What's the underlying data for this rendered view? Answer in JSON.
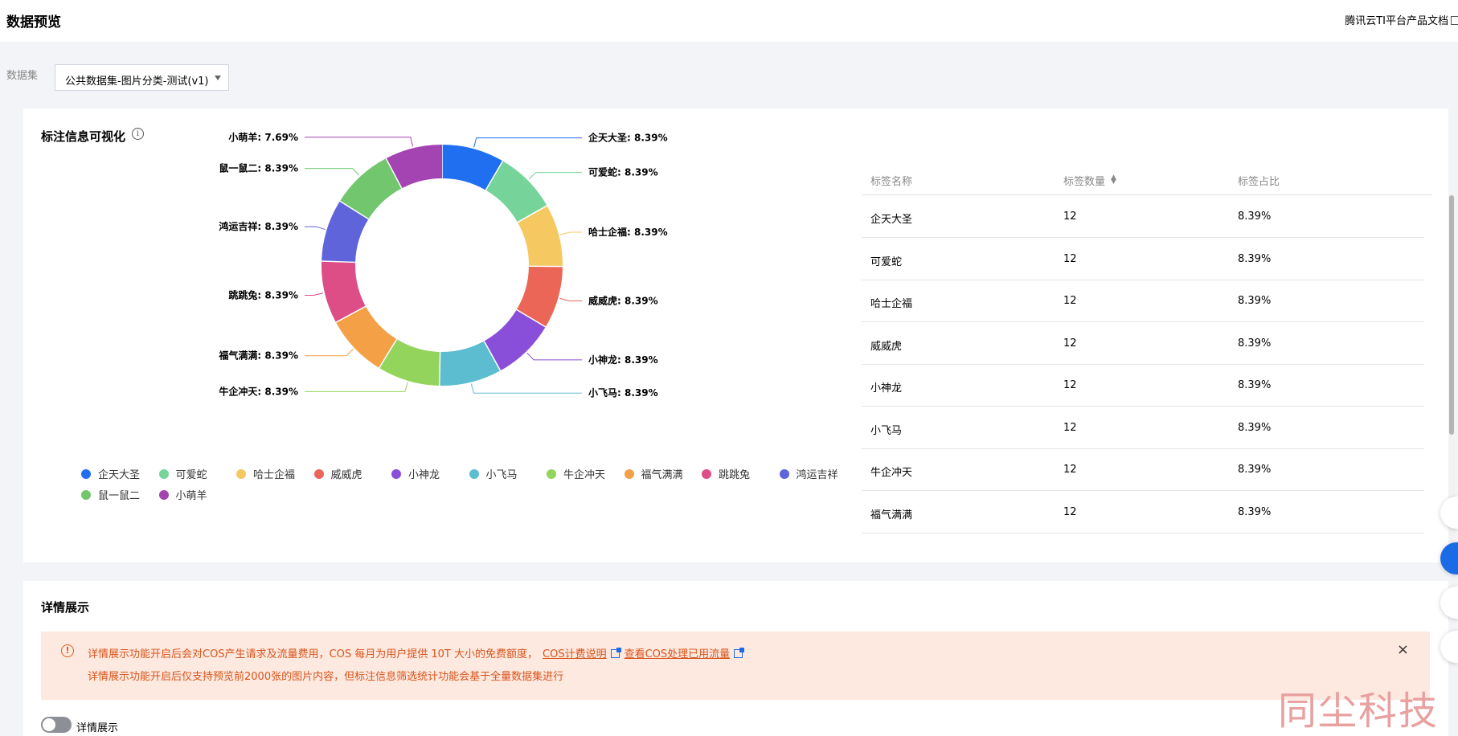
{
  "header": {
    "title": "数据预览",
    "doc_link": "腾讯云TI平台产品文档"
  },
  "dataset": {
    "label": "数据集",
    "selected": "公共数据集-图片分类-测试(v1)"
  },
  "viz_card": {
    "title": "标注信息可视化",
    "info_icon": "info-icon"
  },
  "chart_data": {
    "type": "pie",
    "donut": true,
    "slices": [
      {
        "name": "企天大圣",
        "value": 8.39,
        "label": "企天大圣: 8.39%",
        "color": "#1f6ff0"
      },
      {
        "name": "可爱蛇",
        "value": 8.39,
        "label": "可爱蛇: 8.39%",
        "color": "#76d49a"
      },
      {
        "name": "哈士企福",
        "value": 8.39,
        "label": "哈士企福: 8.39%",
        "color": "#f5c862"
      },
      {
        "name": "威威虎",
        "value": 8.39,
        "label": "威威虎: 8.39%",
        "color": "#eb6657"
      },
      {
        "name": "小神龙",
        "value": 8.39,
        "label": "小神龙: 8.39%",
        "color": "#8a4fd8"
      },
      {
        "name": "小飞马",
        "value": 8.39,
        "label": "小飞马: 8.39%",
        "color": "#5cbdd1"
      },
      {
        "name": "牛企冲天",
        "value": 8.39,
        "label": "牛企冲天: 8.39%",
        "color": "#93d55c"
      },
      {
        "name": "福气满满",
        "value": 8.39,
        "label": "福气满满: 8.39%",
        "color": "#f3a047"
      },
      {
        "name": "跳跳兔",
        "value": 8.39,
        "label": "跳跳兔: 8.39%",
        "color": "#dd4d86"
      },
      {
        "name": "鸿运吉祥",
        "value": 8.39,
        "label": "鸿运吉祥: 8.39%",
        "color": "#6064db"
      },
      {
        "name": "鼠一鼠二",
        "value": 8.39,
        "label": "鼠一鼠二: 8.39%",
        "color": "#71c66e"
      },
      {
        "name": "小萌羊",
        "value": 7.69,
        "label": "小萌羊: 7.69%",
        "color": "#a443b2"
      }
    ],
    "legend_position": "bottom"
  },
  "table": {
    "headers": [
      "标签名称",
      "标签数量",
      "标签占比"
    ],
    "sort_icon": "sort-icon",
    "rows": [
      {
        "name": "企天大圣",
        "count": "12",
        "ratio": "8.39%"
      },
      {
        "name": "可爱蛇",
        "count": "12",
        "ratio": "8.39%"
      },
      {
        "name": "哈士企福",
        "count": "12",
        "ratio": "8.39%"
      },
      {
        "name": "威威虎",
        "count": "12",
        "ratio": "8.39%"
      },
      {
        "name": "小神龙",
        "count": "12",
        "ratio": "8.39%"
      },
      {
        "name": "小飞马",
        "count": "12",
        "ratio": "8.39%"
      },
      {
        "name": "牛企冲天",
        "count": "12",
        "ratio": "8.39%"
      },
      {
        "name": "福气满满",
        "count": "12",
        "ratio": "8.39%"
      }
    ]
  },
  "detail_card": {
    "title": "详情展示",
    "alert_line1": "详情展示功能开启后会对COS产生请求及流量费用，COS 每月为用户提供 10T 大小的免费额度，",
    "alert_link1": "COS计费说明",
    "alert_link2": "查看COS处理已用流量",
    "alert_line2": "详情展示功能开启后仅支持预览前2000张的图片内容，但标注信息筛选统计功能会基于全量数据集进行",
    "close": "×",
    "toggle_label": "详情展示"
  },
  "watermark": "同尘科技"
}
